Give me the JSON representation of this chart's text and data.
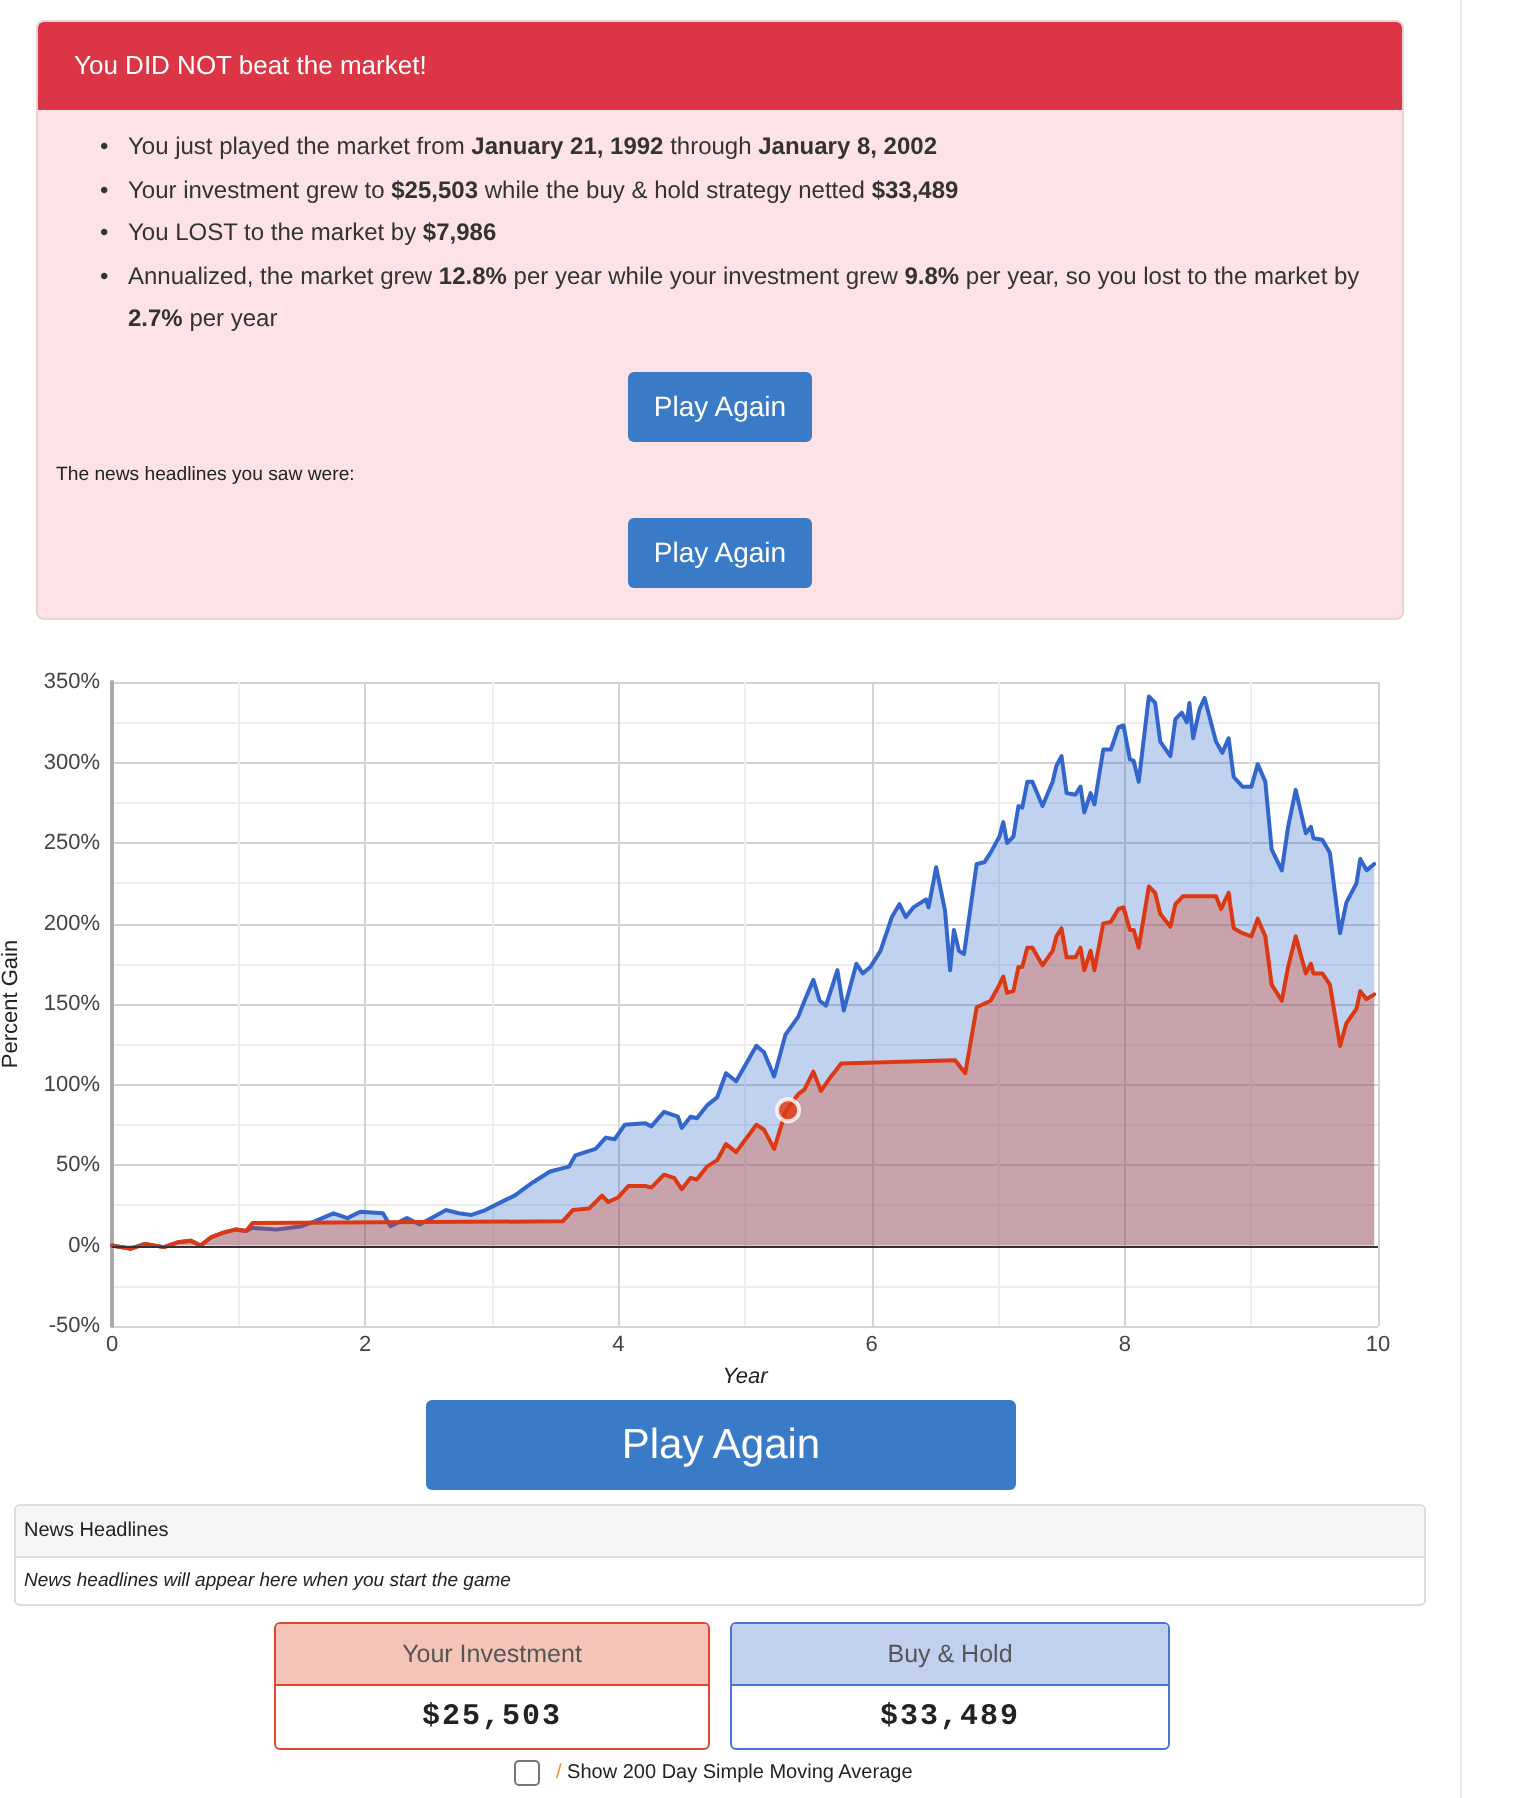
{
  "chart_data": [
    {
      "type": "other",
      "title": "You DID NOT beat the market!",
      "annotations": [
        "• You just played the market from January 21, 1992 through January 8, 2002",
        "• Your investment grew to $25,503 while the buy & hold strategy netted $33,489",
        "• You LOST to the market by $7,986",
        "• Annualized, the market grew 12.8% per year while your investment grew 9.8% per year, so you lost to the market by 2.7% per year",
        "Play Again",
        "The news headlines you saw were:",
        "Play Again"
      ]
    },
    {
      "type": "area",
      "xlabel": "Year",
      "ylabel": "Percent Gain",
      "xlim": [
        0,
        10
      ],
      "xticks": [
        0,
        {
          "value": 1,
          "label": null
        },
        2,
        {
          "value": 3,
          "label": null
        },
        4,
        {
          "value": 5,
          "label": null
        },
        6,
        {
          "value": 7,
          "label": null
        },
        8,
        {
          "value": 9,
          "label": null
        },
        10
      ],
      "ylim": [
        -50,
        350
      ],
      "yticks": [
        {
          "value": -50,
          "label": "-50%"
        },
        {
          "value": -25,
          "label": null
        },
        {
          "value": 0,
          "label": "0%"
        },
        {
          "value": 25,
          "label": null
        },
        {
          "value": 50,
          "label": "50%"
        },
        {
          "value": 75,
          "label": null
        },
        {
          "value": 100,
          "label": "100%"
        },
        {
          "value": 125,
          "label": null
        },
        {
          "value": 150,
          "label": "150%"
        },
        {
          "value": 175,
          "label": null
        },
        {
          "value": 200,
          "label": "200%"
        },
        {
          "value": 225,
          "label": null
        },
        {
          "value": 250,
          "label": "250%"
        },
        {
          "value": 275,
          "label": null
        },
        {
          "value": 300,
          "label": "300%"
        },
        {
          "value": 325,
          "label": null
        },
        {
          "value": 350,
          "label": "350%"
        }
      ],
      "grid": true,
      "marker": "none",
      "ref_lines": [
        {
          "axis": "y",
          "value": 0,
          "color": "#333333"
        }
      ],
      "series": [
        {
          "color": "#3366cc",
          "x": [
            0,
            0.15,
            0.26,
            0.41,
            0.52,
            0.62,
            0.7,
            0.78,
            0.88,
            0.98,
            1.06,
            1.11,
            1.3,
            1.5,
            1.6,
            1.75,
            1.86,
            1.96,
            2.14,
            2.2,
            2.33,
            2.43,
            2.64,
            2.74,
            2.84,
            2.95,
            3.05,
            3.18,
            3.32,
            3.46,
            3.61,
            3.66,
            3.82,
            3.9,
            3.97,
            4.05,
            4.21,
            4.26,
            4.36,
            4.47,
            4.5,
            4.57,
            4.62,
            4.7,
            4.78,
            4.85,
            4.93,
            5.09,
            5.15,
            5.23,
            5.32,
            5.42,
            5.47,
            5.54,
            5.59,
            5.64,
            5.73,
            5.78,
            5.88,
            5.93,
            5.99,
            6.07,
            6.16,
            6.22,
            6.27,
            6.33,
            6.43,
            6.45,
            6.51,
            6.58,
            6.62,
            6.65,
            6.69,
            6.73,
            6.83,
            6.89,
            6.94,
            7.01,
            7.04,
            7.07,
            7.12,
            7.16,
            7.19,
            7.23,
            7.27,
            7.35,
            7.43,
            7.46,
            7.5,
            7.54,
            7.61,
            7.65,
            7.68,
            7.73,
            7.76,
            7.83,
            7.89,
            7.95,
            7.99,
            8.04,
            8.07,
            8.11,
            8.19,
            8.24,
            8.28,
            8.36,
            8.4,
            8.45,
            8.49,
            8.51,
            8.54,
            8.59,
            8.63,
            8.72,
            8.77,
            8.82,
            8.86,
            8.93,
            9,
            9.05,
            9.11,
            9.16,
            9.24,
            9.29,
            9.35,
            9.43,
            9.47,
            9.49,
            9.56,
            9.62,
            9.7,
            9.75,
            9.83,
            9.86,
            9.91,
            9.97
          ],
          "values": [
            0,
            -2,
            1,
            -1,
            2,
            3,
            0,
            5,
            8,
            10,
            9,
            11,
            10,
            12,
            15,
            20,
            17,
            21,
            20,
            12,
            17,
            13,
            22,
            20,
            19,
            22,
            26,
            31,
            39,
            46,
            49,
            56,
            60,
            67,
            66,
            75,
            76,
            74,
            83,
            80,
            73,
            80,
            79,
            87,
            92,
            107,
            102,
            124,
            120,
            105,
            131,
            142,
            152,
            165,
            152,
            149,
            171,
            146,
            175,
            169,
            173,
            183,
            204,
            212,
            204,
            210,
            215,
            210,
            235,
            208,
            171,
            196,
            183,
            181,
            237,
            238,
            244,
            254,
            263,
            250,
            254,
            273,
            272,
            288,
            288,
            273,
            288,
            298,
            304,
            281,
            280,
            285,
            269,
            281,
            274,
            308,
            308,
            322,
            323,
            302,
            301,
            288,
            341,
            337,
            313,
            304,
            327,
            331,
            325,
            337,
            315,
            333,
            340,
            313,
            306,
            315,
            291,
            285,
            285,
            299,
            288,
            246,
            233,
            260,
            283,
            256,
            260,
            253,
            252,
            244,
            194,
            213,
            225,
            240,
            233,
            237
          ]
        },
        {
          "color": "#dc3912",
          "x": [
            0,
            0.15,
            0.26,
            0.41,
            0.52,
            0.62,
            0.7,
            0.78,
            0.88,
            0.98,
            1.06,
            1.11,
            3.56,
            3.64,
            3.77,
            3.87,
            3.92,
            4,
            4.08,
            4.21,
            4.26,
            4.36,
            4.44,
            4.5,
            4.57,
            4.62,
            4.7,
            4.78,
            4.85,
            4.93,
            5.09,
            5.15,
            5.23,
            5.32,
            5.42,
            5.47,
            5.54,
            5.6,
            5.68,
            5.76,
            6.66,
            6.74,
            6.83,
            6.94,
            7.01,
            7.04,
            7.07,
            7.12,
            7.16,
            7.19,
            7.23,
            7.27,
            7.35,
            7.43,
            7.46,
            7.5,
            7.54,
            7.61,
            7.65,
            7.68,
            7.73,
            7.76,
            7.83,
            7.89,
            7.95,
            7.99,
            8.04,
            8.07,
            8.11,
            8.19,
            8.24,
            8.28,
            8.36,
            8.4,
            8.46,
            8.72,
            8.76,
            8.82,
            8.86,
            8.93,
            9,
            9.05,
            9.11,
            9.16,
            9.24,
            9.29,
            9.35,
            9.43,
            9.47,
            9.49,
            9.56,
            9.62,
            9.7,
            9.75,
            9.83,
            9.86,
            9.91,
            9.97
          ],
          "values": [
            0,
            -2,
            1,
            -1,
            2,
            3,
            0,
            5,
            8,
            10,
            9,
            14,
            15,
            22,
            23,
            31,
            27,
            30,
            37,
            37,
            36,
            44,
            42,
            35,
            42,
            41,
            49,
            53,
            63,
            58,
            75,
            72,
            60,
            83,
            94,
            97,
            108,
            96,
            105,
            113,
            115,
            107,
            148,
            152,
            162,
            167,
            157,
            158,
            173,
            173,
            185,
            185,
            174,
            183,
            192,
            197,
            179,
            179,
            185,
            171,
            183,
            171,
            200,
            201,
            209,
            210,
            196,
            196,
            185,
            223,
            219,
            206,
            198,
            212,
            217,
            217,
            209,
            219,
            197,
            194,
            192,
            203,
            192,
            162,
            152,
            173,
            192,
            169,
            175,
            169,
            169,
            162,
            124,
            138,
            147,
            158,
            153,
            156
          ]
        },
        {
          "type": "scatter",
          "marker": "circle",
          "color": "#dc3912",
          "x": [
            5.34
          ],
          "values": [
            84
          ]
        }
      ]
    },
    {
      "type": "other",
      "annotations": [
        "Play Again",
        "News Headlines",
        "News headlines will appear here when you start the game",
        "Your Investment",
        "$25,503",
        "Buy & Hold",
        "$33,489",
        "/ Show 200 Day Simple Moving Average"
      ]
    }
  ]
}
